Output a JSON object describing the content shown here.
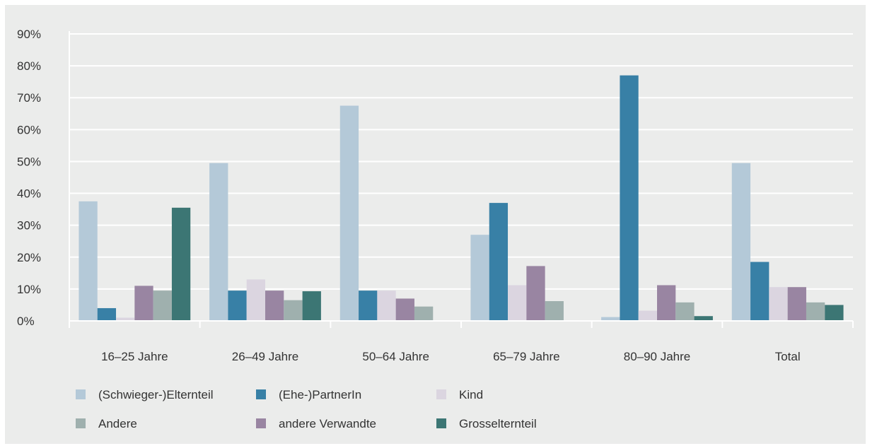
{
  "chart_data": {
    "type": "bar",
    "title": "",
    "xlabel": "",
    "ylabel": "",
    "ylim": [
      0,
      90
    ],
    "yticks": [
      "0%",
      "10%",
      "20%",
      "30%",
      "40%",
      "50%",
      "60%",
      "70%",
      "80%",
      "90%"
    ],
    "grid": true,
    "legend_position": "bottom",
    "categories": [
      "16–25 Jahre",
      "26–49 Jahre",
      "50–64 Jahre",
      "65–79 Jahre",
      "80–90 Jahre",
      "Total"
    ],
    "series": [
      {
        "name": "(Schwieger-)Elternteil",
        "color": "#b4c9d8",
        "values": [
          37.5,
          49.5,
          67.5,
          27,
          1.2,
          49.5
        ]
      },
      {
        "name": "(Ehe-)PartnerIn",
        "color": "#3880a6",
        "values": [
          4,
          9.5,
          9.5,
          37,
          77,
          18.5
        ]
      },
      {
        "name": "Kind",
        "color": "#dbd5e0",
        "values": [
          1,
          13,
          9.5,
          11.2,
          3.2,
          10.6
        ]
      },
      {
        "name": "andere Verwandte",
        "color": "#9985a2",
        "values": [
          11,
          9.5,
          7,
          17.2,
          11.2,
          10.6
        ]
      },
      {
        "name": "Andere",
        "color": "#9fb0ae",
        "values": [
          9.5,
          6.5,
          4.5,
          6.2,
          5.8,
          5.8
        ]
      },
      {
        "name": "Grosselternteil",
        "color": "#3c7674",
        "values": [
          35.5,
          9.3,
          0,
          0,
          1.5,
          5
        ]
      }
    ],
    "legend_order": [
      "(Schwieger-)Elternteil",
      "(Ehe-)PartnerIn",
      "Kind",
      "Andere",
      "andere Verwandte",
      "Grosselternteil"
    ]
  }
}
